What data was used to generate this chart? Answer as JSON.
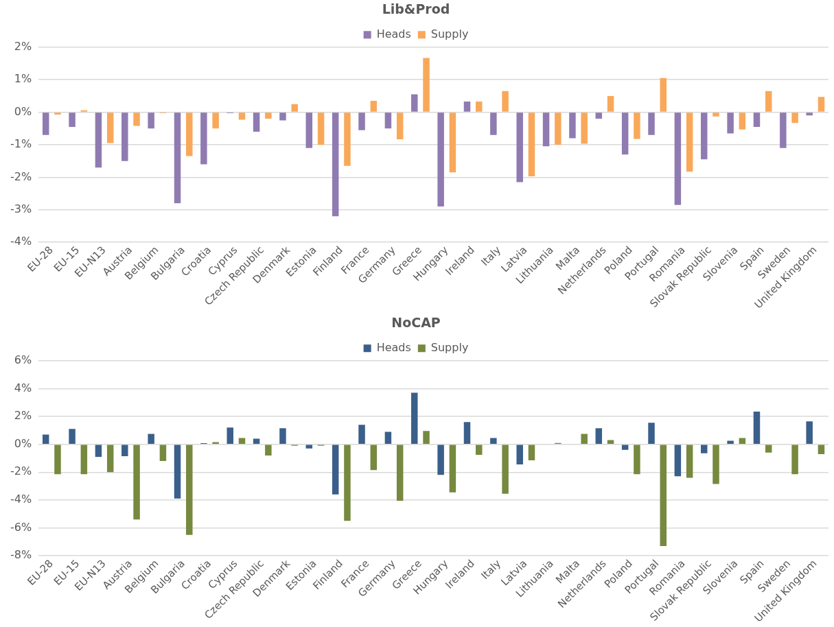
{
  "chart_data": [
    {
      "type": "bar",
      "title": "Lib&Prod",
      "legend": "top",
      "grid": "y",
      "categories": [
        "EU-28",
        "EU-15",
        "EU-N13",
        "Austria",
        "Belgium",
        "Bulgaria",
        "Croatia",
        "Cyprus",
        "Czech Republic",
        "Denmark",
        "Estonia",
        "Finland",
        "France",
        "Germany",
        "Greece",
        "Hungary",
        "Ireland",
        "Italy",
        "Latvia",
        "Lithuania",
        "Malta",
        "Netherlands",
        "Poland",
        "Portugal",
        "Romania",
        "Slovak Republic",
        "Slovenia",
        "Spain",
        "Sweden",
        "United Kingdom"
      ],
      "series": [
        {
          "name": "Heads",
          "color": "#8f7bb1",
          "values": [
            -0.7,
            -0.45,
            -1.7,
            -1.5,
            -0.5,
            -2.8,
            -1.6,
            -0.03,
            -0.6,
            -0.25,
            -1.1,
            -3.2,
            -0.55,
            -0.5,
            0.55,
            -2.9,
            0.33,
            -0.7,
            -2.15,
            -1.05,
            -0.8,
            -0.2,
            -1.3,
            -0.7,
            -2.85,
            -1.45,
            -0.65,
            -0.45,
            -1.1,
            -0.1
          ]
        },
        {
          "name": "Supply",
          "color": "#f9a85a",
          "values": [
            -0.07,
            0.06,
            -0.95,
            -0.42,
            -0.03,
            -1.35,
            -0.5,
            -0.23,
            -0.2,
            0.25,
            -1.0,
            -1.65,
            0.35,
            -0.83,
            1.67,
            -1.85,
            0.33,
            0.65,
            -1.97,
            -1.0,
            -0.97,
            0.5,
            -0.82,
            1.05,
            -1.83,
            -0.13,
            -0.53,
            0.65,
            -0.33,
            0.47
          ]
        }
      ],
      "ylim": [
        -4,
        2
      ],
      "yticks": [
        {
          "value": -4,
          "label": "-4%"
        },
        {
          "value": -3,
          "label": "-3%"
        },
        {
          "value": -2,
          "label": "-2%"
        },
        {
          "value": -1,
          "label": "-1%"
        },
        {
          "value": 0,
          "label": "0%"
        },
        {
          "value": 1,
          "label": "1%"
        },
        {
          "value": 2,
          "label": "2%"
        }
      ]
    },
    {
      "type": "bar",
      "title": "NoCAP",
      "legend": "top",
      "grid": "y",
      "categories": [
        "EU-28",
        "EU-15",
        "EU-N13",
        "Austria",
        "Belgium",
        "Bulgaria",
        "Croatia",
        "Cyprus",
        "Czech Republic",
        "Denmark",
        "Estonia",
        "Finland",
        "France",
        "Germany",
        "Greece",
        "Hungary",
        "Ireland",
        "Italy",
        "Latvia",
        "Lithuania",
        "Malta",
        "Netherlands",
        "Poland",
        "Portugal",
        "Romania",
        "Slovak Republic",
        "Slovenia",
        "Spain",
        "Sweden",
        "United Kingdom"
      ],
      "series": [
        {
          "name": "Heads",
          "color": "#3a5f8a",
          "values": [
            0.7,
            1.1,
            -0.9,
            -0.85,
            0.75,
            -3.9,
            0.08,
            1.2,
            0.4,
            1.15,
            -0.3,
            -3.6,
            1.4,
            0.9,
            3.7,
            -2.2,
            1.6,
            0.45,
            -1.45,
            0,
            0,
            1.15,
            -0.4,
            1.55,
            -2.3,
            -0.65,
            0.25,
            2.35,
            null,
            1.65
          ]
        },
        {
          "name": "Supply",
          "color": "#76893e",
          "values": [
            -2.15,
            -2.15,
            -2.0,
            -5.4,
            -1.2,
            -6.5,
            0.15,
            0.45,
            -0.8,
            -0.1,
            -0.1,
            -5.5,
            -1.85,
            -4.05,
            0.95,
            -3.45,
            -0.75,
            -3.55,
            -1.15,
            0.1,
            0.75,
            0.3,
            -2.15,
            -7.3,
            -2.4,
            -2.85,
            0.45,
            -0.6,
            -2.15,
            -0.7
          ]
        }
      ],
      "ylim": [
        -8,
        6
      ],
      "yticks": [
        {
          "value": -8,
          "label": "-8%"
        },
        {
          "value": -6,
          "label": "-6%"
        },
        {
          "value": -4,
          "label": "-4%"
        },
        {
          "value": -2,
          "label": "-2%"
        },
        {
          "value": 0,
          "label": "0%"
        },
        {
          "value": 2,
          "label": "2%"
        },
        {
          "value": 4,
          "label": "4%"
        },
        {
          "value": 6,
          "label": "6%"
        }
      ]
    }
  ]
}
